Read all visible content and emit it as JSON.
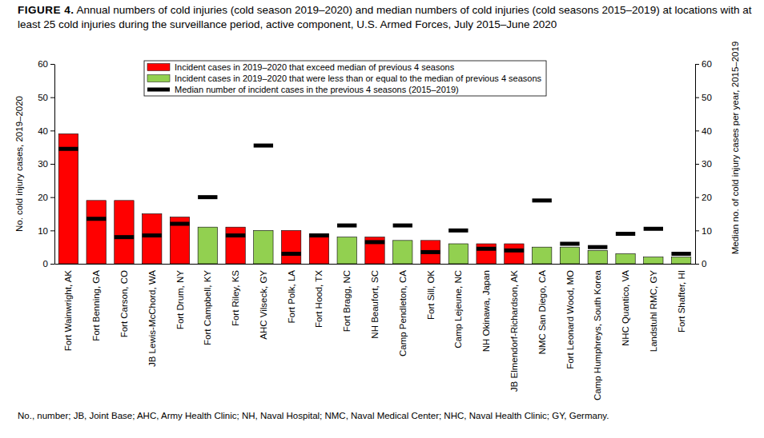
{
  "chart_data": {
    "type": "bar",
    "title": "FIGURE 4. Annual numbers of cold injuries (cold season 2019–2020) and median numbers of cold injuries (cold seasons 2015–2019) at locations with at least 25 cold injuries during the surveillance period, active component, U.S. Armed Forces, July 2015–June 2020",
    "y_label": "No. cold injury cases, 2019–2020",
    "y2_label": "Median no. of cold injury cases per year, 2015–2019",
    "annotations": [
      "No., number; JB, Joint Base; AHC, Army Health Clinic; NH, Naval Hospital; NMC, Naval Medical Center; NHC, Naval Health Clinic; GY, Germany."
    ],
    "categories": [
      "Fort Wainwright, AK",
      "Fort Benning, GA",
      "Fort Carson, CO",
      "JB Lewis-McChord, WA",
      "Fort Drum, NY",
      "Fort Campbell, KY",
      "Fort Riley, KS",
      "AHC Vilseck, GY",
      "Fort Polk, LA",
      "Fort Hood, TX",
      "Fort Bragg, NC",
      "NH Beaufort, SC",
      "Camp Pendleton, CA",
      "Fort Sill, OK",
      "Camp Lejeune, NC",
      "NH Okinawa, Japan",
      "JB Elmendorf-Richardson, AK",
      "NMC San Diego, CA",
      "Fort Leonard Wood, MO",
      "Camp Humphreys, South Korea",
      "NHC Quantico, VA",
      "Landstuhl RMC, GY",
      "Fort Shafter, HI"
    ],
    "series": [
      {
        "name": "Incident cases in 2019–2020 that exceed median of previous 4 seasons",
        "color": "#ff0000",
        "type": "bar",
        "values": [
          39,
          19,
          19,
          15,
          14,
          null,
          11,
          null,
          10,
          9,
          null,
          8,
          null,
          7,
          null,
          6,
          6,
          null,
          null,
          null,
          null,
          null,
          null
        ]
      },
      {
        "name": "Incident cases in 2019–2020 that were less than or equal to the median of previous 4 seasons",
        "color": "#92d050",
        "type": "bar",
        "values": [
          null,
          null,
          null,
          null,
          null,
          11,
          null,
          10,
          null,
          null,
          8,
          null,
          7,
          null,
          6,
          null,
          null,
          5,
          5,
          4,
          3,
          2,
          2
        ]
      },
      {
        "name": "Median number of incident cases in the previous 4 seasons (2015–2019)",
        "color": "#000000",
        "type": "scatter",
        "marker": "dash",
        "axis": "y2",
        "values": [
          34.5,
          13.5,
          8,
          8.5,
          12,
          20,
          8.5,
          35.5,
          3,
          8.5,
          11.5,
          6.5,
          11.5,
          3.5,
          10,
          4.5,
          4,
          19,
          6,
          5,
          9,
          10.5,
          3
        ]
      }
    ],
    "ylim": [
      0,
      60
    ],
    "yticks": [
      0,
      10,
      20,
      30,
      40,
      50,
      60
    ],
    "y2lim": [
      0,
      60
    ],
    "y2ticks": [
      0,
      10,
      20,
      30,
      40,
      50,
      60
    ],
    "legend": "top",
    "grid": false
  }
}
